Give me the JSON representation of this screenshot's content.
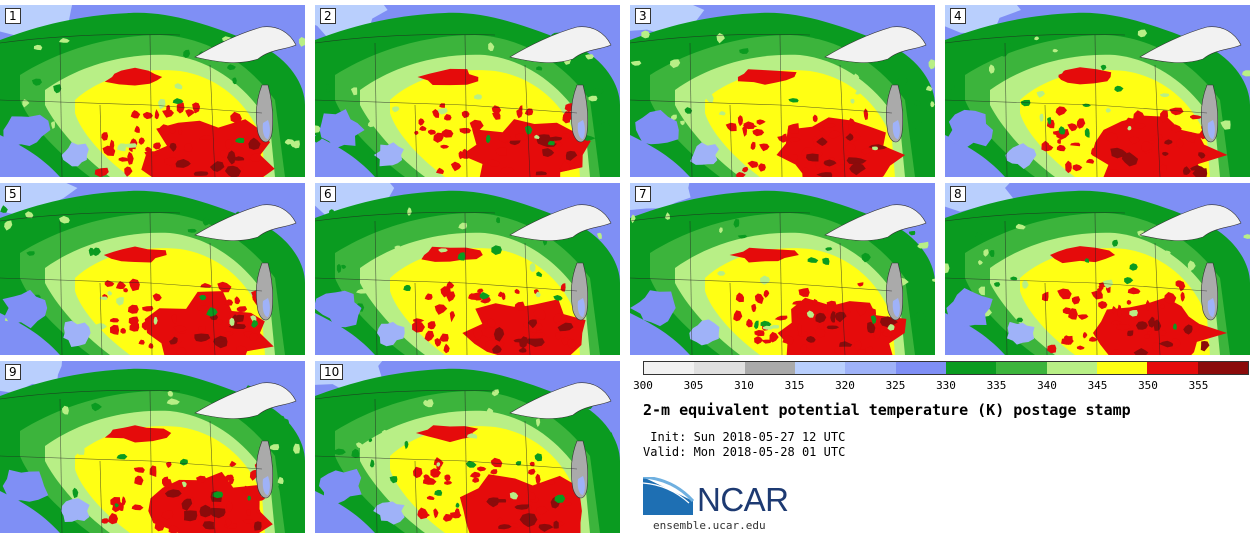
{
  "panels": [
    {
      "label": "1"
    },
    {
      "label": "2"
    },
    {
      "label": "3"
    },
    {
      "label": "4"
    },
    {
      "label": "5"
    },
    {
      "label": "6"
    },
    {
      "label": "7"
    },
    {
      "label": "8"
    },
    {
      "label": "9"
    },
    {
      "label": "10"
    }
  ],
  "colorbar": {
    "ticks": [
      "300",
      "305",
      "310",
      "315",
      "320",
      "325",
      "330",
      "335",
      "340",
      "345",
      "350",
      "355"
    ],
    "colors": [
      "#f2f2f2",
      "#e0e0e0",
      "#aaaaaa",
      "#b9cffd",
      "#9fb2f8",
      "#7f8ff5",
      "#0a9b20",
      "#3cb43c",
      "#b8ef86",
      "#ffff14",
      "#e50b0b",
      "#8b0b0b"
    ]
  },
  "title": "2-m equivalent potential temperature (K) postage stamp",
  "init_line": " Init: Sun 2018-05-27 12 UTC",
  "valid_line": "Valid: Mon 2018-05-28 01 UTC",
  "logo": {
    "text": "NCAR",
    "url": "ensemble.ucar.edu"
  }
}
